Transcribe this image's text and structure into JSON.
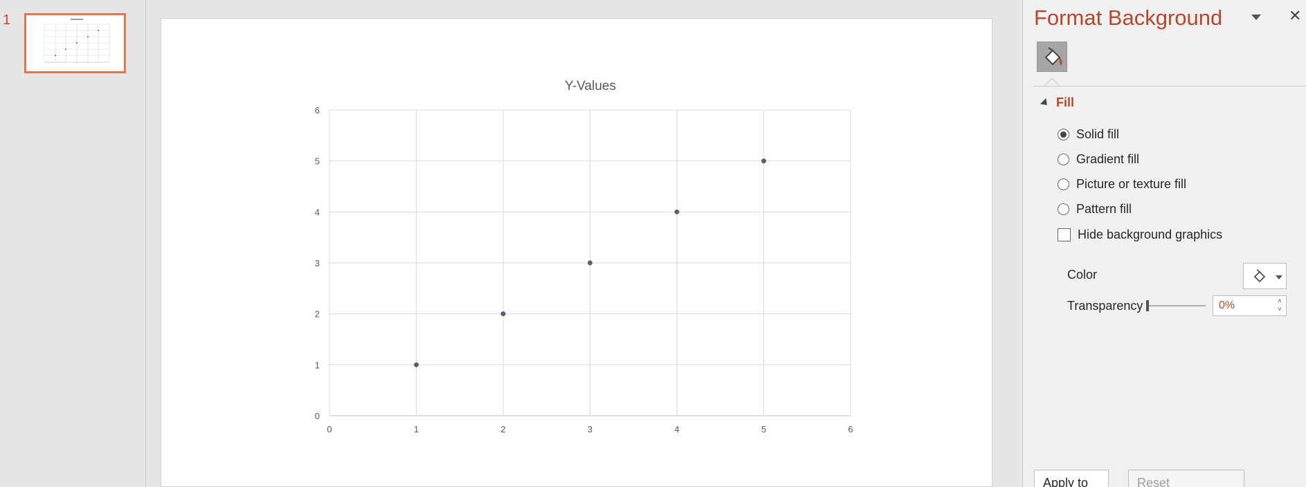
{
  "thumbnails": {
    "slide_number": "1"
  },
  "slide": {
    "chart_data": {
      "type": "scatter",
      "title": "Y-Values",
      "xlabel": "",
      "ylabel": "",
      "x": [
        1,
        2,
        3,
        4,
        5
      ],
      "series": [
        {
          "values": [
            1,
            2,
            3,
            4,
            5
          ]
        }
      ],
      "xlim": [
        0,
        6
      ],
      "ylim": [
        0,
        6
      ],
      "xticks": [
        0,
        1,
        2,
        3,
        4,
        5,
        6
      ],
      "yticks": [
        0,
        1,
        2,
        3,
        4,
        5,
        6
      ],
      "grid": true,
      "legend": "none",
      "marker_color": "#5b5b7a"
    }
  },
  "format_pane": {
    "title": "Format Background",
    "section": "Fill",
    "options": [
      {
        "label": "Solid fill",
        "checked": true
      },
      {
        "label": "Gradient fill",
        "checked": false
      },
      {
        "label": "Picture or texture fill",
        "checked": false
      },
      {
        "label": "Pattern fill",
        "checked": false
      }
    ],
    "hide_graphics_label": "Hide background graphics",
    "color_label": "Color",
    "transparency_label": "Transparency",
    "transparency_value": "0%",
    "apply_all_label": "Apply to All",
    "reset_label": "Reset Background",
    "accent_color": "#b7472a"
  }
}
